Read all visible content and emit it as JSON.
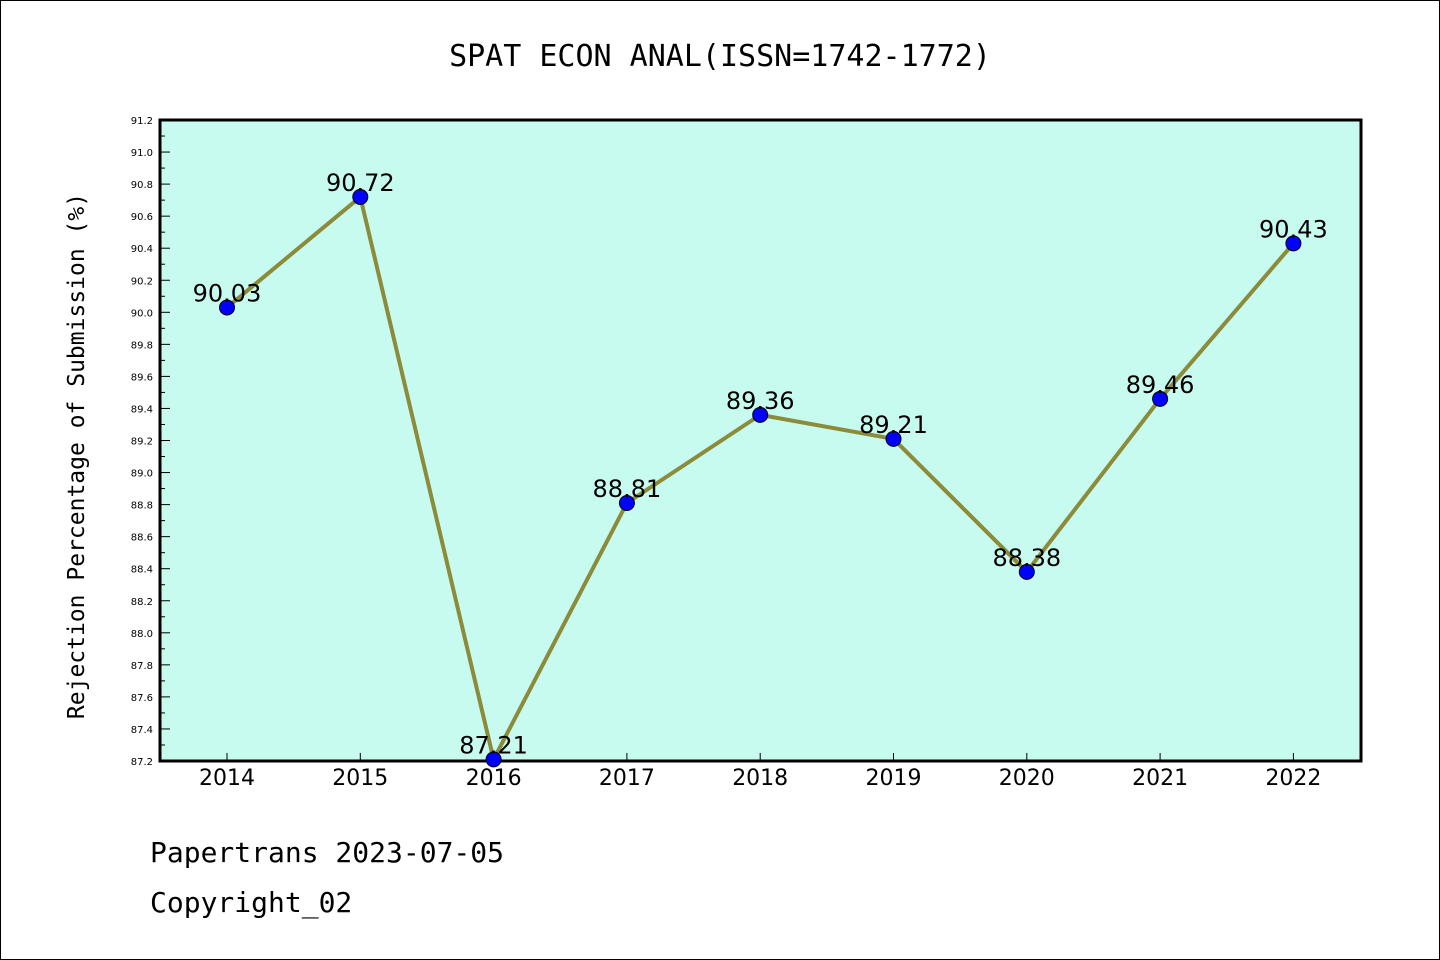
{
  "chart_data": {
    "type": "line",
    "title": "SPAT ECON ANAL(ISSN=1742-1772)",
    "xlabel": "",
    "ylabel": "Rejection Percentage of Submission (%)",
    "categories": [
      "2014",
      "2015",
      "2016",
      "2017",
      "2018",
      "2019",
      "2020",
      "2021",
      "2022"
    ],
    "values": [
      90.03,
      90.72,
      87.21,
      88.81,
      89.36,
      89.21,
      88.38,
      89.46,
      90.43
    ],
    "data_labels": [
      "90.03",
      "90.72",
      "87.21",
      "88.81",
      "89.36",
      "89.21",
      "88.38",
      "89.46",
      "90.43"
    ],
    "ylim": [
      87.2,
      91.2
    ],
    "yticks": [
      "87.2",
      "87.4",
      "87.6",
      "87.8",
      "88.0",
      "88.2",
      "88.4",
      "88.6",
      "88.8",
      "89.0",
      "89.2",
      "89.4",
      "89.6",
      "89.8",
      "90.0",
      "90.2",
      "90.4",
      "90.6",
      "90.8",
      "91.0",
      "91.2"
    ],
    "grid": false,
    "colors": {
      "plot_background": "#c8fbef",
      "line": "#8b8b3a",
      "marker": "#0000ff"
    }
  },
  "footer": {
    "line1": "Papertrans 2023-07-05",
    "line2": "Copyright_02"
  }
}
